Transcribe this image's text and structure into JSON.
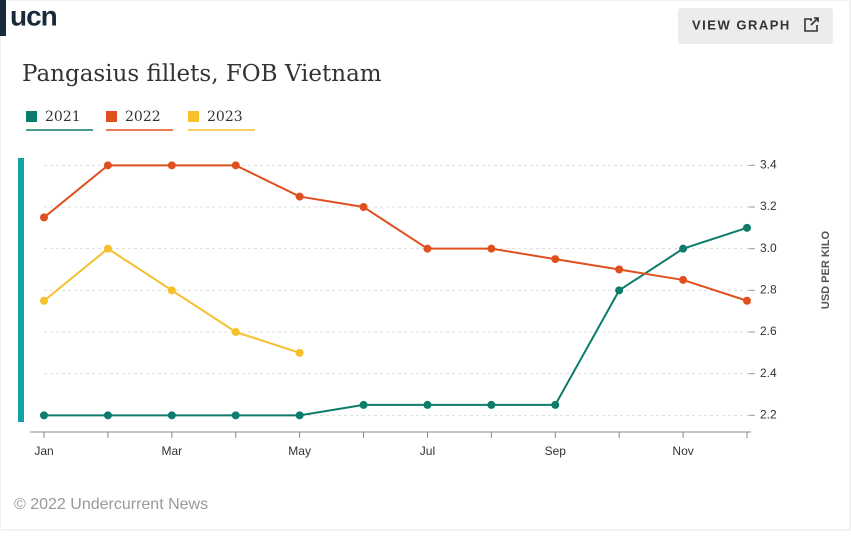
{
  "logo": "ucn",
  "button": "VIEW GRAPH",
  "footer": "© 2022 Undercurrent News",
  "chart_data": {
    "type": "line",
    "title": "Pangasius fillets, FOB Vietnam",
    "y_label": "USD PER KILO",
    "categories": [
      "Jan",
      null,
      "Mar",
      null,
      "May",
      null,
      "Jul",
      null,
      "Sep",
      null,
      "Nov",
      null
    ],
    "series": [
      {
        "name": "2021",
        "color": "#0e7c6b",
        "values": [
          2.2,
          2.2,
          2.2,
          2.2,
          2.2,
          2.25,
          2.25,
          2.25,
          2.25,
          2.8,
          3.0,
          3.1
        ]
      },
      {
        "name": "2022",
        "color": "#e0501f",
        "values": [
          3.15,
          3.4,
          3.4,
          3.4,
          3.25,
          3.2,
          3.0,
          3.0,
          2.95,
          2.9,
          2.85,
          2.75
        ]
      },
      {
        "name": "2023",
        "color": "#f5c02c",
        "values": [
          2.75,
          3.0,
          2.8,
          2.6,
          2.5,
          null,
          null,
          null,
          null,
          null,
          null,
          null
        ]
      }
    ],
    "ylim": [
      2.12,
      3.44
    ],
    "yticks": [
      2.2,
      2.4,
      2.6,
      2.8,
      {
        "value": 3,
        "label": "3.0"
      },
      3.2,
      3.4
    ],
    "grid": true
  }
}
